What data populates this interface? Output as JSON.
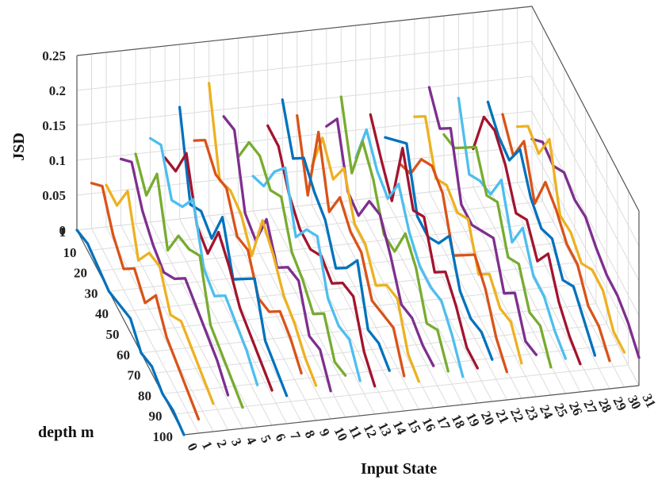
{
  "chart_data": {
    "type": "line3d",
    "zlabel": "JSD",
    "ylabel": "depth m",
    "xlabel": "Input State",
    "zlim": [
      0,
      0.25
    ],
    "z_ticks": [
      "0",
      "0.05",
      "0.1",
      "0.15",
      "0.2",
      "0.25"
    ],
    "y_ticks": [
      "1",
      "10",
      "20",
      "30",
      "40",
      "50",
      "60",
      "70",
      "80",
      "90",
      "100"
    ],
    "x_ticks": [
      "0",
      "1",
      "2",
      "3",
      "4",
      "5",
      "6",
      "7",
      "8",
      "9",
      "10",
      "11",
      "12",
      "13",
      "14",
      "15",
      "16",
      "17",
      "18",
      "19",
      "20",
      "21",
      "22",
      "23",
      "24",
      "25",
      "26",
      "27",
      "28",
      "29",
      "30",
      "31"
    ],
    "grid": true,
    "colors": [
      "#0072BD",
      "#D95319",
      "#EDB120",
      "#7E2F8E",
      "#77AC30",
      "#4DBEEE",
      "#A2142F"
    ],
    "depths": [
      1,
      10,
      20,
      30,
      40,
      50,
      60,
      70,
      80,
      90,
      100
    ],
    "series": [
      {
        "values": [
          0.0,
          0.065,
          0.06,
          0.095,
          0.1,
          0.12,
          0.09,
          0.16,
          0.11,
          0.19,
          0.14,
          0.08,
          0.05,
          0.12,
          0.155,
          0.13,
          0.055,
          0.11,
          0.15,
          0.06,
          0.12,
          0.085,
          0.045,
          0.11,
          0.15,
          0.08,
          0.13,
          0.055,
          0.12,
          0.1,
          0.08,
          0.06
        ]
      },
      {
        "values": [
          0.01,
          0.09,
          0.06,
          0.12,
          0.07,
          0.14,
          0.1,
          0.05,
          0.14,
          0.08,
          0.15,
          0.13,
          0.065,
          0.12,
          0.1,
          0.045,
          0.125,
          0.15,
          0.07,
          0.13,
          0.085,
          0.11,
          0.06,
          0.14,
          0.12,
          0.09,
          0.05,
          0.13,
          0.1,
          0.07,
          0.11,
          0.085
        ]
      },
      {
        "values": [
          0.005,
          0.05,
          0.11,
          0.08,
          0.13,
          0.09,
          0.155,
          0.07,
          0.12,
          0.095,
          0.06,
          0.14,
          0.115,
          0.08,
          0.13,
          0.165,
          0.095,
          0.075,
          0.145,
          0.1,
          0.055,
          0.135,
          0.11,
          0.08,
          0.15,
          0.12,
          0.07,
          0.14,
          0.095,
          0.12,
          0.1,
          0.08
        ]
      },
      {
        "values": [
          0.0,
          0.03,
          0.04,
          0.06,
          0.05,
          0.11,
          0.08,
          0.06,
          0.13,
          0.09,
          0.05,
          0.12,
          0.15,
          0.06,
          0.11,
          0.08,
          0.14,
          0.07,
          0.12,
          0.09,
          0.16,
          0.06,
          0.13,
          0.1,
          0.07,
          0.15,
          0.08,
          0.12,
          0.14,
          0.06,
          0.15,
          0.1
        ]
      },
      {
        "values": [
          0.01,
          0.06,
          0.08,
          0.05,
          0.1,
          0.15,
          0.07,
          0.12,
          0.09,
          0.06,
          0.11,
          0.14,
          0.08,
          0.06,
          0.1,
          0.13,
          0.09,
          0.12,
          0.07,
          0.14,
          0.1,
          0.06,
          0.12,
          0.09,
          0.07,
          0.11,
          0.13,
          0.08,
          0.1,
          0.12,
          0.07,
          0.09
        ]
      },
      {
        "values": [
          0.02,
          0.04,
          0.09,
          0.07,
          0.11,
          0.08,
          0.13,
          0.06,
          0.1,
          0.14,
          0.07,
          0.09,
          0.12,
          0.08,
          0.06,
          0.11,
          0.09,
          0.13,
          0.075,
          0.1,
          0.12,
          0.08,
          0.06,
          0.11,
          0.09,
          0.13,
          0.07,
          0.1,
          0.085,
          0.11,
          0.075,
          0.095
        ]
      },
      {
        "values": [
          0.0,
          0.08,
          0.05,
          0.1,
          0.13,
          0.07,
          0.11,
          0.09,
          0.06,
          0.12,
          0.1,
          0.08,
          0.14,
          0.07,
          0.09,
          0.11,
          0.06,
          0.1,
          0.13,
          0.08,
          0.07,
          0.12,
          0.09,
          0.06,
          0.11,
          0.08,
          0.12,
          0.07,
          0.1,
          0.09,
          0.06,
          0.08
        ]
      },
      {
        "values": [
          0.01,
          0.05,
          0.07,
          0.09,
          0.06,
          0.1,
          0.08,
          0.12,
          0.07,
          0.09,
          0.11,
          0.06,
          0.08,
          0.1,
          0.13,
          0.07,
          0.09,
          0.06,
          0.11,
          0.08,
          0.1,
          0.07,
          0.12,
          0.09,
          0.06,
          0.1,
          0.08,
          0.11,
          0.07,
          0.09,
          0.08,
          0.07
        ]
      },
      {
        "values": [
          0.0,
          0.04,
          0.06,
          0.08,
          0.05,
          0.09,
          0.07,
          0.06,
          0.1,
          0.08,
          0.06,
          0.09,
          0.07,
          0.11,
          0.06,
          0.08,
          0.1,
          0.07,
          0.06,
          0.09,
          0.08,
          0.06,
          0.1,
          0.07,
          0.09,
          0.06,
          0.08,
          0.07,
          0.09,
          0.06,
          0.08,
          0.07
        ]
      },
      {
        "values": [
          0.005,
          0.03,
          0.05,
          0.07,
          0.04,
          0.08,
          0.06,
          0.05,
          0.09,
          0.06,
          0.07,
          0.05,
          0.08,
          0.06,
          0.07,
          0.09,
          0.05,
          0.06,
          0.08,
          0.07,
          0.05,
          0.07,
          0.06,
          0.08,
          0.05,
          0.07,
          0.06,
          0.05,
          0.07,
          0.06,
          0.05,
          0.06
        ]
      },
      {
        "values": [
          0.0,
          0.02,
          0.04,
          0.05,
          0.03,
          0.06,
          0.05,
          0.04,
          0.07,
          0.05,
          0.04,
          0.06,
          0.05,
          0.04,
          0.06,
          0.05,
          0.04,
          0.06,
          0.05,
          0.04,
          0.05,
          0.06,
          0.04,
          0.05,
          0.06,
          0.04,
          0.05,
          0.04,
          0.05,
          0.04,
          0.05,
          0.04
        ]
      }
    ]
  }
}
